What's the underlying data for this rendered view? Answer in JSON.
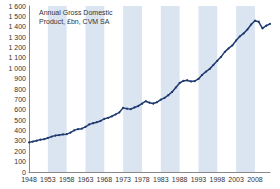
{
  "chart_data": {
    "type": "line",
    "title": "Annual Gross Domestic Product, £bn, CVM SA",
    "categories": [
      "1948",
      null,
      null,
      null,
      null,
      "1953",
      null,
      null,
      null,
      null,
      "1958",
      null,
      null,
      null,
      null,
      "1963",
      null,
      null,
      null,
      null,
      "1968",
      null,
      null,
      null,
      null,
      "1973",
      null,
      null,
      null,
      null,
      "1978",
      null,
      null,
      null,
      null,
      "1983",
      null,
      null,
      null,
      null,
      "1988",
      null,
      null,
      null,
      null,
      "1993",
      null,
      null,
      null,
      null,
      "1998",
      null,
      null,
      null,
      null,
      "2003",
      null,
      null,
      null,
      null,
      "2008",
      null,
      null,
      null,
      null
    ],
    "values": [
      285,
      293,
      302,
      312,
      316,
      328,
      341,
      351,
      356,
      362,
      365,
      380,
      402,
      413,
      418,
      435,
      459,
      470,
      480,
      492,
      512,
      522,
      537,
      555,
      575,
      618,
      610,
      606,
      622,
      636,
      658,
      682,
      668,
      660,
      673,
      697,
      715,
      740,
      772,
      815,
      858,
      878,
      884,
      873,
      876,
      897,
      937,
      968,
      994,
      1033,
      1072,
      1110,
      1158,
      1192,
      1220,
      1268,
      1308,
      1336,
      1374,
      1422,
      1458,
      1448,
      1384,
      1410,
      1428
    ],
    "color": "#1f3a6e",
    "marker": "circle",
    "ylim": [
      0,
      1600
    ],
    "yticks": [
      0,
      100,
      200,
      300,
      400,
      500,
      600,
      700,
      800,
      900,
      {
        "value": 1000,
        "label": "1 000"
      },
      {
        "value": 1100,
        "label": "1 100"
      },
      {
        "value": 1200,
        "label": "1 200"
      },
      {
        "value": 1300,
        "label": "1 300"
      },
      {
        "value": 1400,
        "label": "1 400"
      },
      {
        "value": 1500,
        "label": "1 500"
      },
      {
        "value": 1600,
        "label": "1 600"
      }
    ],
    "grid": false
  }
}
